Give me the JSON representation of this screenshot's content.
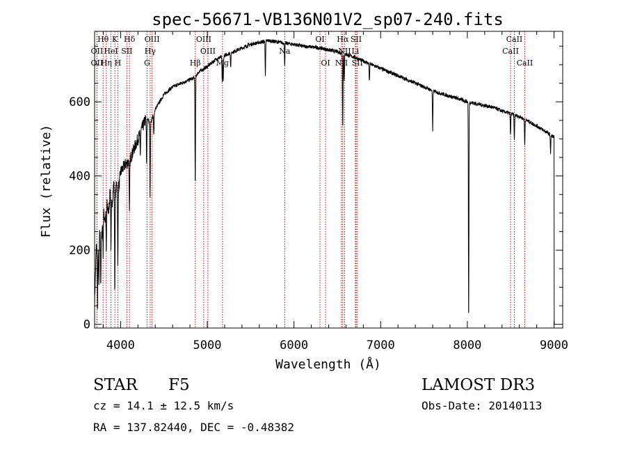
{
  "chart_data": {
    "type": "line",
    "title": "spec-56671-VB136N01V2_sp07-240.fits",
    "xlabel": "Wavelength (Å)",
    "ylabel": "Flux (relative)",
    "xlim": [
      3700,
      9100
    ],
    "ylim": [
      -10,
      790
    ],
    "xticks": [
      4000,
      5000,
      6000,
      7000,
      8000,
      9000
    ],
    "yticks": [
      0,
      200,
      400,
      600
    ],
    "grid": false,
    "series": [
      {
        "name": "flux",
        "x": [
          3700,
          3720,
          3740,
          3760,
          3780,
          3800,
          3820,
          3840,
          3860,
          3880,
          3900,
          3920,
          3940,
          3960,
          3980,
          4000,
          4050,
          4100,
          4150,
          4200,
          4250,
          4300,
          4340,
          4400,
          4500,
          4600,
          4700,
          4800,
          4850,
          4900,
          5000,
          5100,
          5200,
          5300,
          5400,
          5500,
          5600,
          5700,
          5800,
          5900,
          6000,
          6100,
          6200,
          6300,
          6400,
          6500,
          6600,
          6700,
          6800,
          6900,
          7000,
          7100,
          7200,
          7300,
          7400,
          7500,
          7600,
          7700,
          7800,
          7900,
          8000,
          8100,
          8200,
          8300,
          8400,
          8500,
          8600,
          8700,
          8800,
          8900,
          9000,
          9020
        ],
        "y": [
          60,
          210,
          190,
          250,
          230,
          310,
          280,
          330,
          300,
          360,
          320,
          380,
          350,
          390,
          370,
          410,
          430,
          440,
          470,
          500,
          530,
          560,
          540,
          580,
          620,
          640,
          650,
          660,
          665,
          680,
          695,
          715,
          725,
          735,
          745,
          755,
          760,
          765,
          762,
          758,
          755,
          750,
          748,
          745,
          740,
          735,
          728,
          720,
          710,
          700,
          690,
          680,
          670,
          660,
          650,
          640,
          630,
          622,
          615,
          608,
          600,
          595,
          590,
          585,
          575,
          568,
          560,
          548,
          535,
          520,
          505,
          480
        ],
        "absorptions": [
          {
            "x": 3734,
            "depth": 140
          },
          {
            "x": 3750,
            "depth": 120
          },
          {
            "x": 3771,
            "depth": 130
          },
          {
            "x": 3798,
            "depth": 110
          },
          {
            "x": 3835,
            "depth": 130
          },
          {
            "x": 3889,
            "depth": 140
          },
          {
            "x": 3933,
            "depth": 270
          },
          {
            "x": 3968,
            "depth": 230
          },
          {
            "x": 4102,
            "depth": 150
          },
          {
            "x": 4227,
            "depth": 60
          },
          {
            "x": 4300,
            "depth": 130
          },
          {
            "x": 4340,
            "depth": 200
          },
          {
            "x": 4383,
            "depth": 60
          },
          {
            "x": 4861,
            "depth": 300
          },
          {
            "x": 5172,
            "depth": 70
          },
          {
            "x": 5184,
            "depth": 70
          },
          {
            "x": 5270,
            "depth": 40
          },
          {
            "x": 5670,
            "depth": 90
          },
          {
            "x": 5893,
            "depth": 60
          },
          {
            "x": 6563,
            "depth": 200
          },
          {
            "x": 6580,
            "depth": 70
          },
          {
            "x": 6870,
            "depth": 50
          },
          {
            "x": 7600,
            "depth": 110
          },
          {
            "x": 8015,
            "depth": 600
          },
          {
            "x": 8498,
            "depth": 60
          },
          {
            "x": 8542,
            "depth": 70
          },
          {
            "x": 8662,
            "depth": 70
          },
          {
            "x": 8960,
            "depth": 50
          }
        ]
      }
    ],
    "lines": [
      {
        "name": "Hθ",
        "x": 3798,
        "row": 0
      },
      {
        "name": "K",
        "x": 3934,
        "row": 0
      },
      {
        "name": "Hδ",
        "x": 4102,
        "row": 0
      },
      {
        "name": "OIII",
        "x": 4363,
        "row": 0
      },
      {
        "name": "OIII",
        "x": 4959,
        "row": 0
      },
      {
        "name": "OI",
        "x": 6300,
        "row": 0
      },
      {
        "name": "Hα",
        "x": 6563,
        "row": 0
      },
      {
        "name": "SII",
        "x": 6717,
        "row": 0
      },
      {
        "name": "CaII",
        "x": 8542,
        "row": 0
      },
      {
        "name": "OII",
        "x": 3727,
        "row": 1
      },
      {
        "name": "HeI",
        "x": 3889,
        "row": 1
      },
      {
        "name": "SII",
        "x": 4072,
        "row": 1
      },
      {
        "name": "Hγ",
        "x": 4341,
        "row": 1
      },
      {
        "name": "OIII",
        "x": 5007,
        "row": 1
      },
      {
        "name": "Na",
        "x": 5893,
        "row": 1
      },
      {
        "name": "NII",
        "x": 6584,
        "row": 1
      },
      {
        "name": "Li",
        "x": 6708,
        "row": 1
      },
      {
        "name": "CaII",
        "x": 8498,
        "row": 1
      },
      {
        "name": "OII",
        "x": 3727,
        "row": 2
      },
      {
        "name": "Hη",
        "x": 3835,
        "row": 2
      },
      {
        "name": "H",
        "x": 3968,
        "row": 2
      },
      {
        "name": "G",
        "x": 4305,
        "row": 2
      },
      {
        "name": "Hβ",
        "x": 4861,
        "row": 2
      },
      {
        "name": "Mg",
        "x": 5175,
        "row": 2
      },
      {
        "name": "OI",
        "x": 6364,
        "row": 2
      },
      {
        "name": "NII",
        "x": 6548,
        "row": 2
      },
      {
        "name": "SII",
        "x": 6731,
        "row": 2
      },
      {
        "name": "CaII",
        "x": 8662,
        "row": 2
      }
    ]
  },
  "info": {
    "object_class": "STAR",
    "subclass": "F5",
    "survey": "LAMOST DR3",
    "redshift": "cz = 14.1 ± 12.5 km/s",
    "obs_date": "Obs-Date: 20140113",
    "coords": "RA = 137.82440, DEC =  -0.48382"
  },
  "colors": {
    "spectrum": "#000000",
    "line_markers": "#cc0000",
    "axes": "#000000"
  }
}
